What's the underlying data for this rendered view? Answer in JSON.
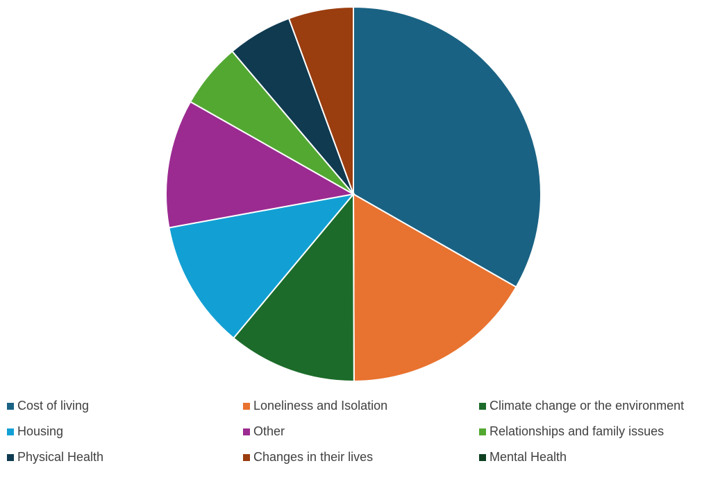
{
  "chart_data": {
    "type": "pie",
    "categories": [
      "Cost of living",
      "Loneliness and Isolation",
      "Climate change or the environment",
      "Housing",
      "Other",
      "Relationships and family issues",
      "Physical Health",
      "Changes in their lives",
      "Mental Health"
    ],
    "values": [
      33.3,
      16.7,
      11.1,
      11.1,
      11.1,
      5.6,
      5.6,
      5.6,
      0
    ],
    "colors": [
      "#1a6283",
      "#e8722f",
      "#1c6b2a",
      "#12a0d4",
      "#9b2b91",
      "#53a832",
      "#0f3a50",
      "#9a3d0f",
      "#0e4020"
    ],
    "legend": "bottom"
  }
}
